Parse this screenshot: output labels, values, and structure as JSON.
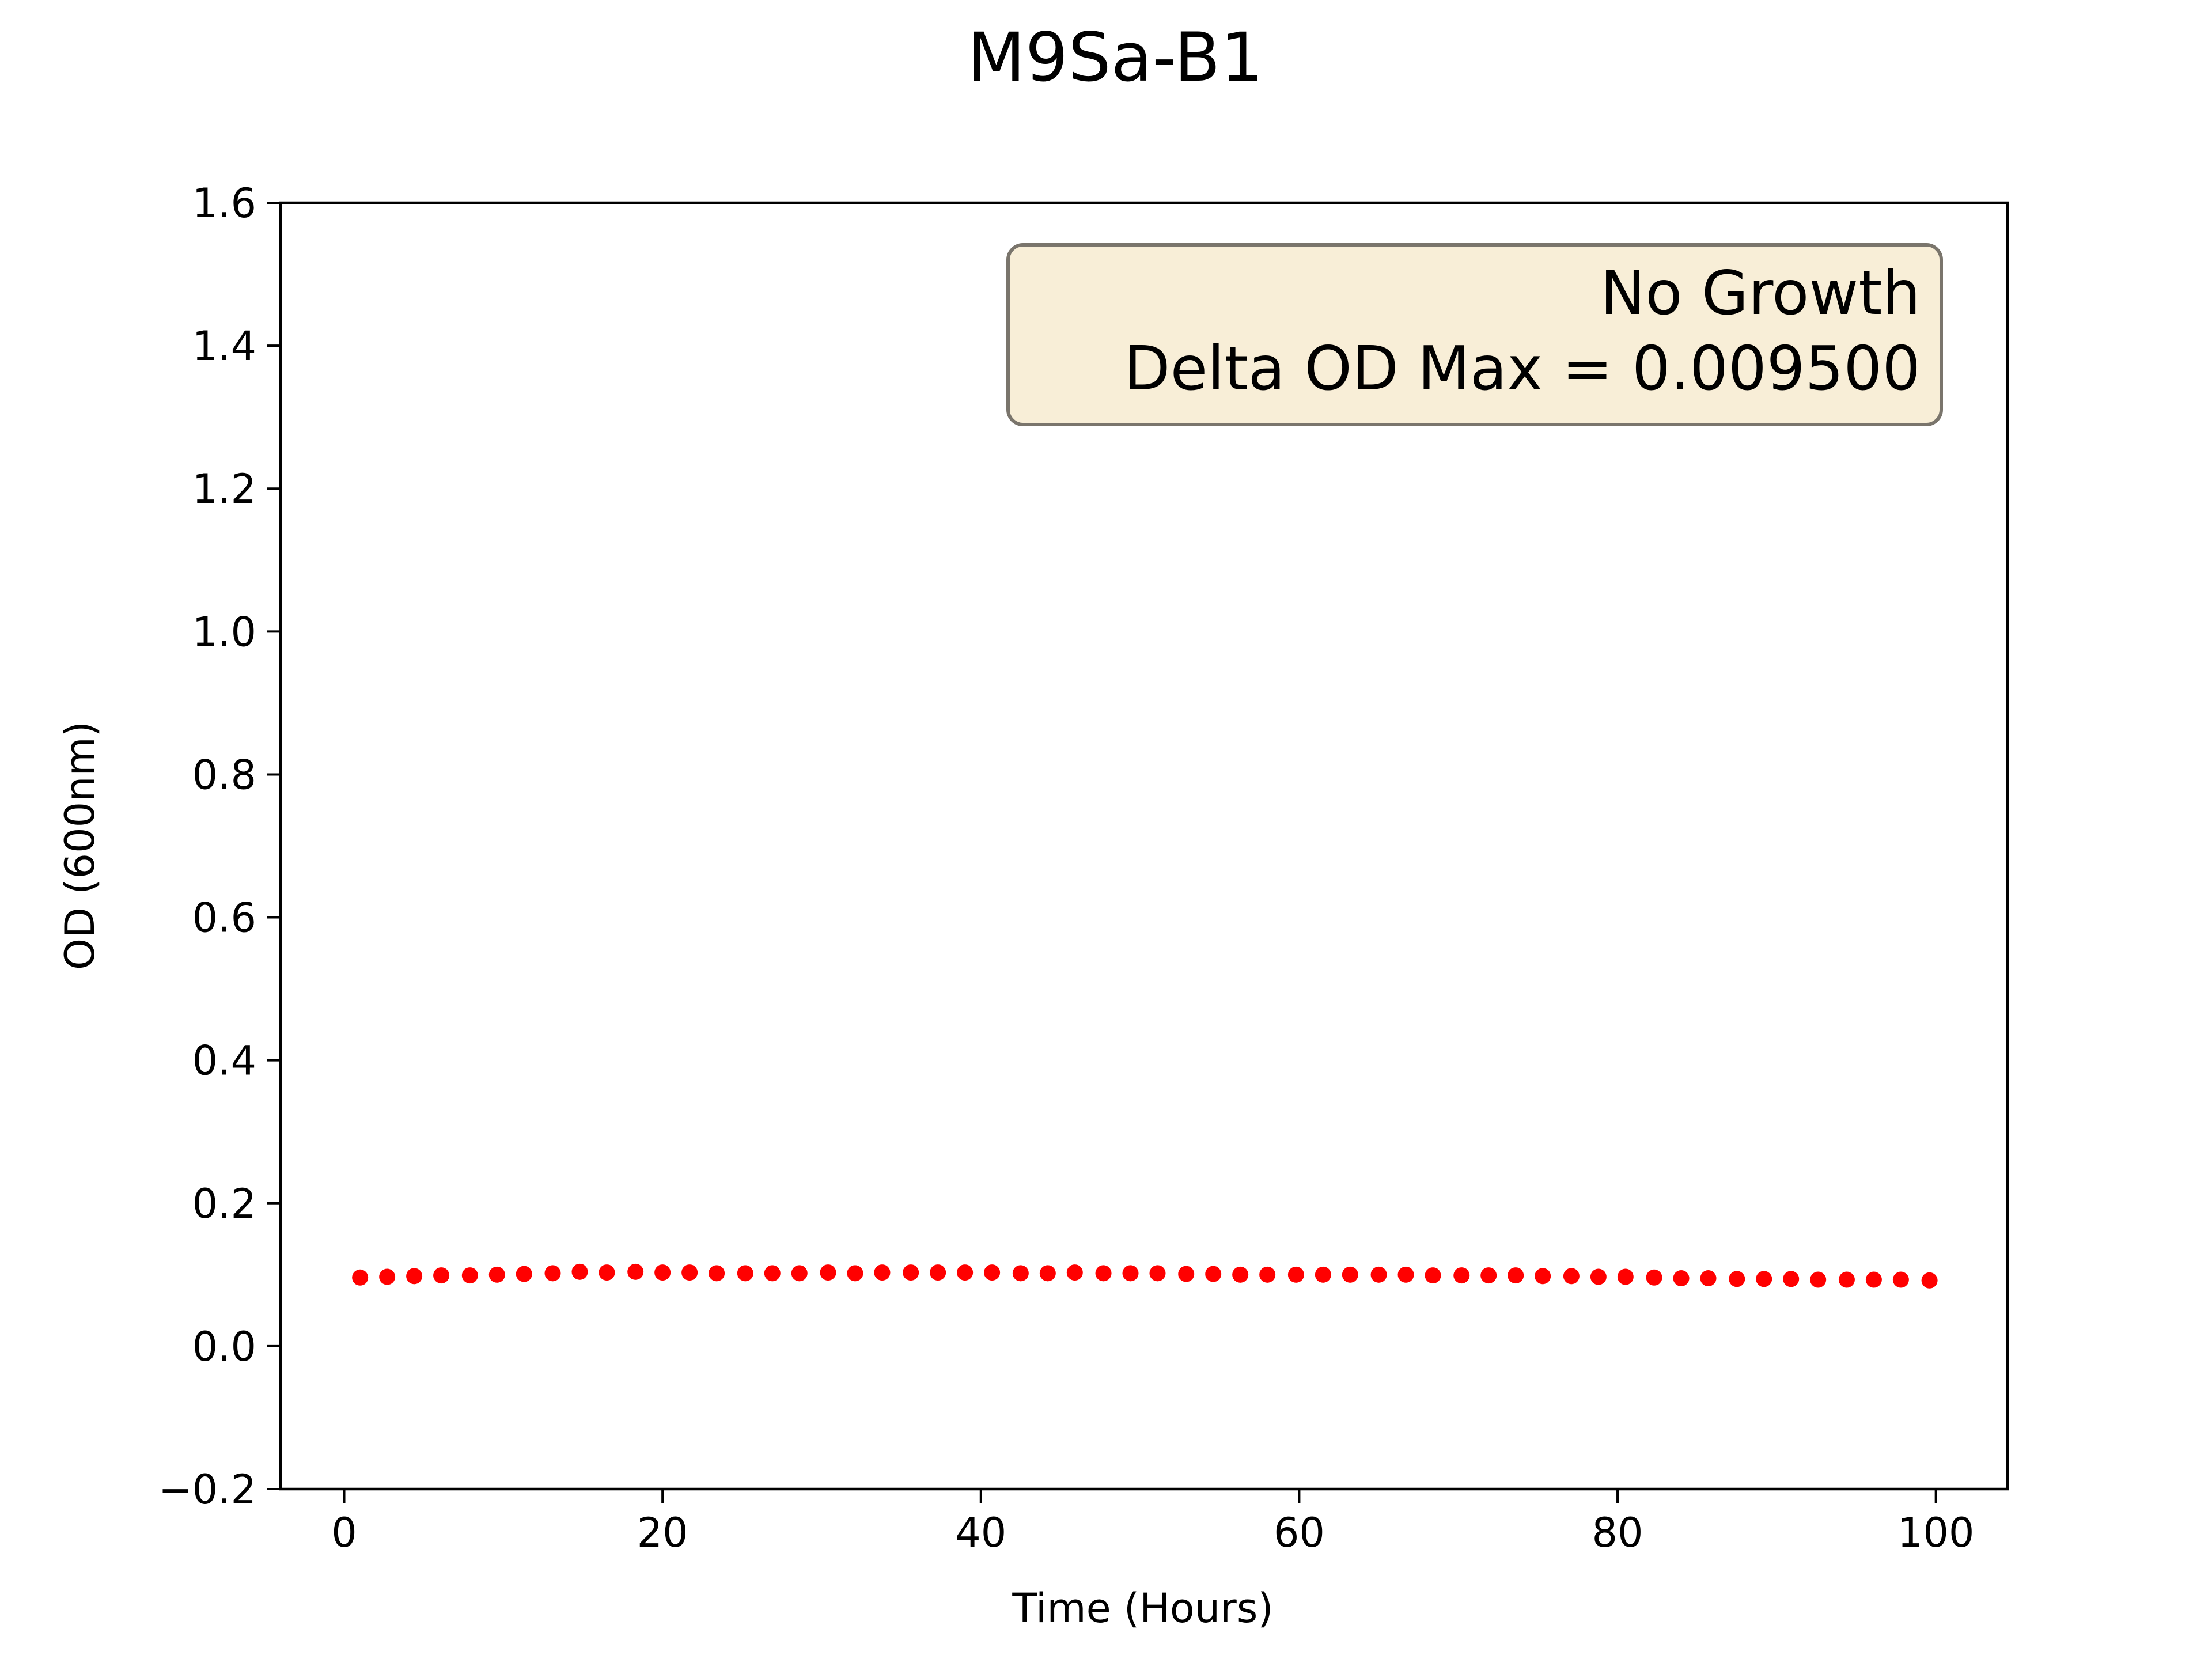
{
  "chart_data": {
    "type": "scatter",
    "title": "M9Sa-B1",
    "xlabel": "Time (Hours)",
    "ylabel": "OD (600nm)",
    "xlim": [
      -4,
      104.5
    ],
    "ylim": [
      -0.2,
      1.6
    ],
    "xticks": [
      0,
      20,
      40,
      60,
      80,
      100
    ],
    "yticks": [
      -0.2,
      0.0,
      0.2,
      0.4,
      0.6,
      0.8,
      1.0,
      1.2,
      1.4,
      1.6
    ],
    "xtick_labels": [
      "0",
      "20",
      "40",
      "60",
      "80",
      "100"
    ],
    "ytick_labels": [
      "−0.2",
      "0.0",
      "0.2",
      "0.4",
      "0.6",
      "0.8",
      "1.0",
      "1.2",
      "1.4",
      "1.6"
    ],
    "grid": false,
    "marker_color": "#ff0000",
    "annotation": {
      "lines": [
        "No Growth",
        "Delta OD Max = 0.009500"
      ],
      "placement": "top-right",
      "background": "#f8eed7",
      "border": "#7a756c"
    },
    "series": [
      {
        "x": [
          1.0,
          2.7,
          4.4,
          6.1,
          7.9,
          9.6,
          11.3,
          13.1,
          14.8,
          16.5,
          18.3,
          20.0,
          21.7,
          23.4,
          25.2,
          26.9,
          28.6,
          30.4,
          32.1,
          33.8,
          35.6,
          37.3,
          39.0,
          40.7,
          42.5,
          44.2,
          45.9,
          47.7,
          49.4,
          51.1,
          52.9,
          54.6,
          56.3,
          58.0,
          59.8,
          61.5,
          63.2,
          65.0,
          66.7,
          68.4,
          70.2,
          71.9,
          73.6,
          75.3,
          77.1,
          78.8,
          80.5,
          82.3,
          84.0,
          85.7,
          87.5,
          89.2,
          90.9,
          92.6,
          94.4,
          96.1,
          97.8,
          99.6
        ],
        "y": [
          0.096,
          0.097,
          0.098,
          0.099,
          0.099,
          0.1,
          0.101,
          0.102,
          0.104,
          0.103,
          0.104,
          0.103,
          0.103,
          0.102,
          0.102,
          0.102,
          0.102,
          0.103,
          0.102,
          0.103,
          0.103,
          0.103,
          0.103,
          0.103,
          0.102,
          0.102,
          0.103,
          0.102,
          0.102,
          0.102,
          0.101,
          0.101,
          0.1,
          0.1,
          0.1,
          0.1,
          0.1,
          0.1,
          0.1,
          0.099,
          0.099,
          0.099,
          0.099,
          0.098,
          0.098,
          0.097,
          0.097,
          0.096,
          0.095,
          0.095,
          0.094,
          0.094,
          0.094,
          0.093,
          0.093,
          0.093,
          0.093,
          0.092
        ]
      }
    ]
  }
}
